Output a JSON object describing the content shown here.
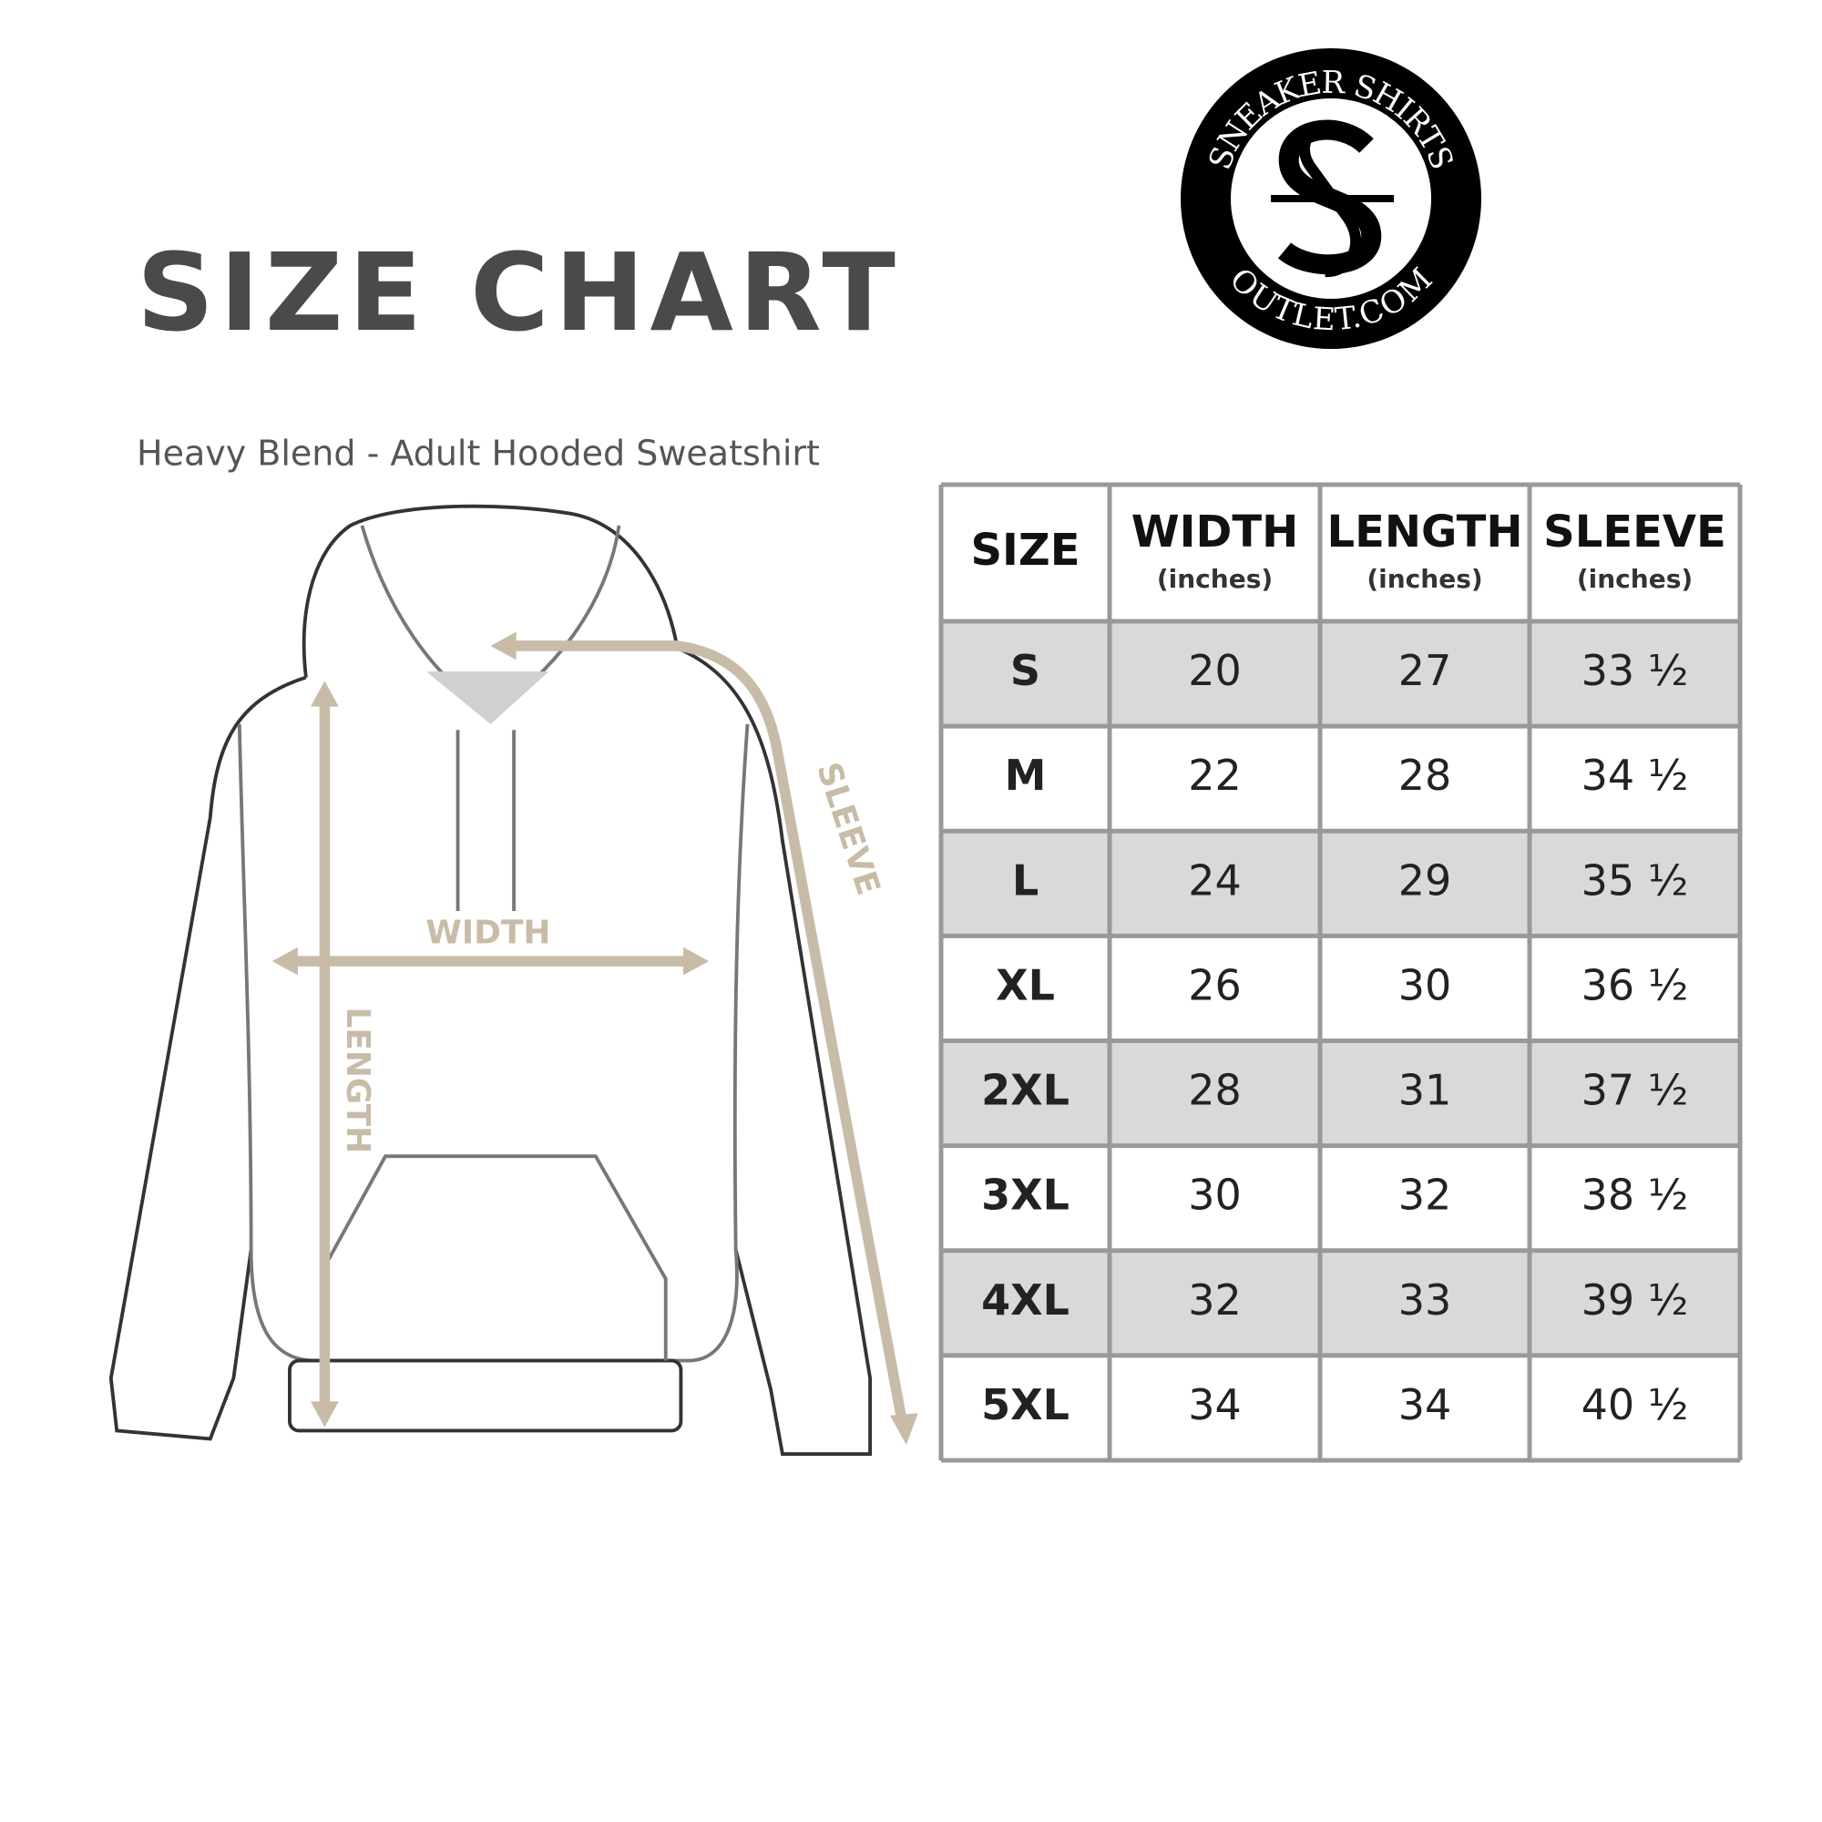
{
  "header": {
    "title": "SIZE CHART",
    "subtitle": "Heavy Blend - Adult Hooded Sweatshirt"
  },
  "logo": {
    "top_text": "SNEAKER SHIRTS",
    "bottom_text": "OUTLET.COM"
  },
  "diagram": {
    "width_label": "WIDTH",
    "length_label": "LENGTH",
    "sleeve_label": "SLEEVE"
  },
  "table": {
    "columns": [
      {
        "label": "SIZE"
      },
      {
        "label": "WIDTH",
        "unit": "(inches)"
      },
      {
        "label": "LENGTH",
        "unit": "(inches)"
      },
      {
        "label": "SLEEVE",
        "unit": "(inches)"
      }
    ],
    "rows": [
      [
        "S",
        "20",
        "27",
        "33 ½"
      ],
      [
        "M",
        "22",
        "28",
        "34 ½"
      ],
      [
        "L",
        "24",
        "29",
        "35 ½"
      ],
      [
        "XL",
        "26",
        "30",
        "36 ½"
      ],
      [
        "2XL",
        "28",
        "31",
        "37 ½"
      ],
      [
        "3XL",
        "30",
        "32",
        "38 ½"
      ],
      [
        "4XL",
        "32",
        "33",
        "39 ½"
      ],
      [
        "5XL",
        "34",
        "34",
        "40 ½"
      ]
    ]
  }
}
